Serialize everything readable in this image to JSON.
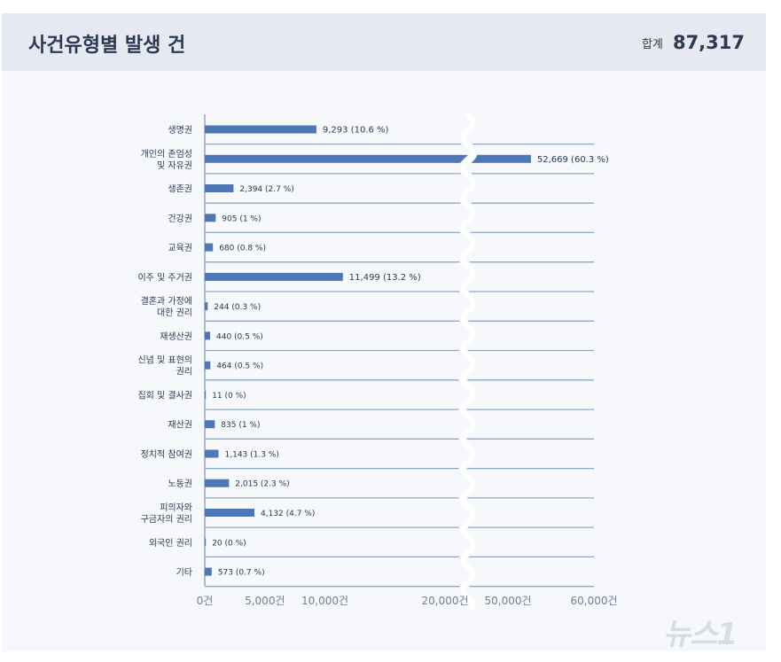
{
  "header": {
    "title": "사건유형별 발생 건",
    "total_label": "합계",
    "total_value": "87,317"
  },
  "watermark": "뉴스1",
  "colors": {
    "bar": "#4e78b5",
    "grid": "#8ea7c8",
    "panel": "#f6f8fc",
    "header": "#e6e9f2",
    "text": "#2b3a52",
    "tick": "#6f7f96"
  },
  "chart_data": {
    "type": "bar",
    "orientation": "horizontal",
    "axis_break": [
      20000,
      50000
    ],
    "categories": [
      [
        "생명권"
      ],
      [
        "개인의 존엄성",
        "및 자유권"
      ],
      [
        "생존권"
      ],
      [
        "건강권"
      ],
      [
        "교육권"
      ],
      [
        "이주 및 주거권"
      ],
      [
        "결혼과 가정에",
        "대한 권리"
      ],
      [
        "재생산권"
      ],
      [
        "신념 및 표현의",
        "권리"
      ],
      [
        "집회 및 결사권"
      ],
      [
        "재산권"
      ],
      [
        "정치적 참여권"
      ],
      [
        "노동권"
      ],
      [
        "피의자와",
        "구금자의 권리"
      ],
      [
        "외국인 권리"
      ],
      [
        "기타"
      ]
    ],
    "values": [
      9293,
      52669,
      2394,
      905,
      680,
      11499,
      244,
      440,
      464,
      11,
      835,
      1143,
      2015,
      4132,
      20,
      573
    ],
    "data_labels": [
      "9,293 (10.6 %)",
      "52,669 (60.3 %)",
      "2,394 (2.7 %)",
      "905 (1 %)",
      "680 (0.8 %)",
      "11,499 (13.2 %)",
      "244 (0.3 %)",
      "440 (0.5 %)",
      "464 (0.5 %)",
      "11 (0 %)",
      "835 (1 %)",
      "1,143 (1.3 %)",
      "2,015 (2.3 %)",
      "4,132 (4.7 %)",
      "20 (0 %)",
      "573 (0.7 %)"
    ],
    "x_ticks": [
      {
        "value": 0,
        "label": "0건"
      },
      {
        "value": 5000,
        "label": "5,000건"
      },
      {
        "value": 10000,
        "label": "10,000건"
      },
      {
        "value": 20000,
        "label": "20,000건"
      },
      {
        "value": 50000,
        "label": "50,000건"
      },
      {
        "value": 60000,
        "label": "60,000건"
      }
    ]
  }
}
